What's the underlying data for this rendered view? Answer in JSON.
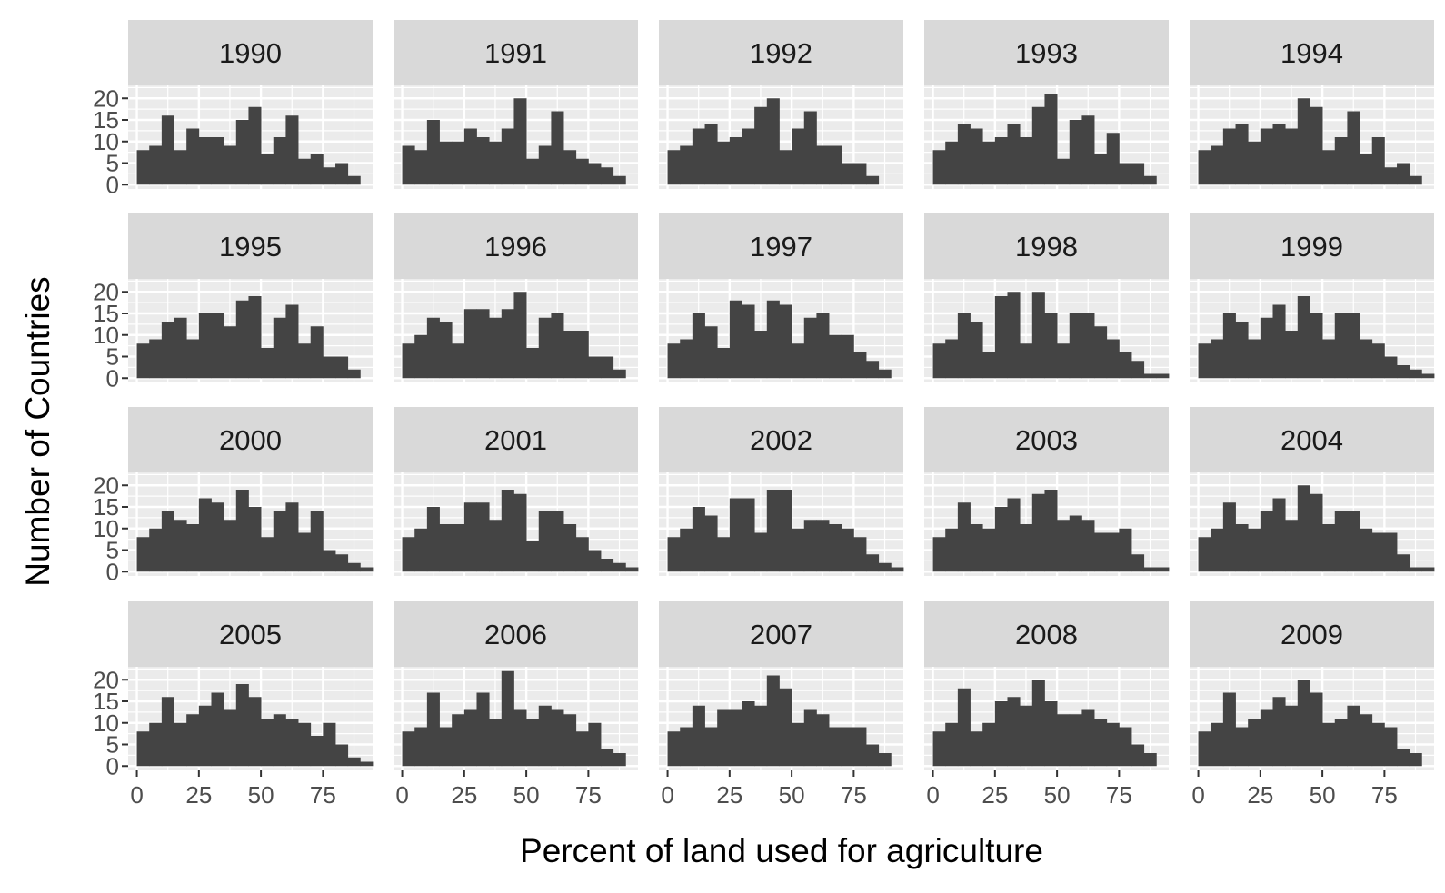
{
  "chart_data": {
    "type": "bar",
    "subtype": "faceted histogram",
    "xlabel": "Percent of land used for agriculture",
    "ylabel": "Number of Countries",
    "bin_width": 5,
    "bin_starts": [
      0,
      5,
      10,
      15,
      20,
      25,
      30,
      35,
      40,
      45,
      50,
      55,
      60,
      65,
      70,
      75,
      80,
      85,
      90
    ],
    "xlim": [
      -3.5,
      95
    ],
    "ylim": [
      -1,
      23
    ],
    "x_ticks": [
      0,
      25,
      50,
      75
    ],
    "x_tick_labels": [
      "0",
      "25",
      "50",
      "75"
    ],
    "y_ticks": [
      0,
      5,
      10,
      15,
      20
    ],
    "y_tick_labels": [
      "0",
      "5",
      "10",
      "15",
      "20"
    ],
    "grid": true,
    "colors": {
      "bar": "#444444",
      "panel": "#ebebeb",
      "grid": "#ffffff",
      "strip": "#d9d9d9"
    },
    "facets": [
      {
        "label": "1990",
        "values": [
          8,
          9,
          16,
          8,
          13,
          11,
          11,
          9,
          15,
          18,
          7,
          11,
          16,
          6,
          7,
          4,
          5,
          2,
          0
        ]
      },
      {
        "label": "1991",
        "values": [
          9,
          8,
          15,
          10,
          10,
          13,
          11,
          10,
          13,
          20,
          6,
          9,
          17,
          8,
          6,
          5,
          4,
          2,
          0
        ]
      },
      {
        "label": "1992",
        "values": [
          8,
          9,
          13,
          14,
          10,
          11,
          13,
          18,
          20,
          8,
          13,
          17,
          9,
          9,
          5,
          5,
          2,
          0,
          0
        ]
      },
      {
        "label": "1993",
        "values": [
          8,
          10,
          14,
          13,
          10,
          11,
          14,
          11,
          18,
          21,
          6,
          15,
          16,
          7,
          12,
          5,
          5,
          2,
          0
        ]
      },
      {
        "label": "1994",
        "values": [
          8,
          9,
          13,
          14,
          10,
          13,
          14,
          13,
          20,
          18,
          8,
          11,
          17,
          7,
          11,
          4,
          5,
          2,
          0
        ]
      },
      {
        "label": "1995",
        "values": [
          8,
          9,
          13,
          14,
          9,
          15,
          15,
          12,
          18,
          19,
          7,
          14,
          17,
          8,
          12,
          5,
          5,
          2,
          0
        ]
      },
      {
        "label": "1996",
        "values": [
          8,
          10,
          14,
          13,
          8,
          16,
          16,
          14,
          16,
          20,
          7,
          14,
          15,
          11,
          11,
          5,
          5,
          2,
          0
        ]
      },
      {
        "label": "1997",
        "values": [
          8,
          9,
          15,
          12,
          7,
          18,
          17,
          11,
          18,
          17,
          8,
          14,
          15,
          10,
          10,
          6,
          4,
          2,
          0
        ]
      },
      {
        "label": "1998",
        "values": [
          8,
          9,
          15,
          13,
          6,
          19,
          20,
          8,
          20,
          15,
          8,
          15,
          15,
          12,
          9,
          6,
          4,
          1,
          1
        ]
      },
      {
        "label": "1999",
        "values": [
          8,
          9,
          15,
          13,
          9,
          14,
          17,
          11,
          19,
          15,
          9,
          15,
          15,
          9,
          8,
          5,
          3,
          2,
          1
        ]
      },
      {
        "label": "2000",
        "values": [
          8,
          10,
          14,
          12,
          11,
          17,
          16,
          12,
          19,
          15,
          8,
          14,
          16,
          9,
          14,
          5,
          4,
          2,
          1
        ]
      },
      {
        "label": "2001",
        "values": [
          8,
          10,
          15,
          11,
          11,
          16,
          16,
          12,
          19,
          18,
          7,
          14,
          14,
          11,
          8,
          5,
          3,
          2,
          1
        ]
      },
      {
        "label": "2002",
        "values": [
          8,
          10,
          15,
          13,
          8,
          17,
          17,
          9,
          19,
          19,
          10,
          12,
          12,
          11,
          10,
          8,
          4,
          2,
          1
        ]
      },
      {
        "label": "2003",
        "values": [
          8,
          10,
          16,
          11,
          10,
          15,
          17,
          11,
          18,
          19,
          12,
          13,
          12,
          9,
          9,
          10,
          4,
          1,
          1
        ]
      },
      {
        "label": "2004",
        "values": [
          8,
          10,
          16,
          11,
          10,
          14,
          17,
          12,
          20,
          18,
          11,
          14,
          14,
          10,
          9,
          9,
          4,
          1,
          1
        ]
      },
      {
        "label": "2005",
        "values": [
          8,
          10,
          16,
          10,
          12,
          14,
          17,
          13,
          19,
          16,
          11,
          12,
          11,
          10,
          7,
          10,
          5,
          2,
          1
        ]
      },
      {
        "label": "2006",
        "values": [
          8,
          9,
          17,
          9,
          12,
          13,
          17,
          11,
          22,
          13,
          11,
          14,
          13,
          12,
          8,
          10,
          4,
          3,
          0
        ]
      },
      {
        "label": "2007",
        "values": [
          8,
          9,
          14,
          9,
          13,
          13,
          15,
          14,
          21,
          18,
          10,
          13,
          12,
          9,
          9,
          9,
          5,
          3,
          0
        ]
      },
      {
        "label": "2008",
        "values": [
          8,
          10,
          18,
          8,
          10,
          15,
          16,
          14,
          20,
          15,
          12,
          12,
          13,
          11,
          10,
          9,
          5,
          3,
          0
        ]
      },
      {
        "label": "2009",
        "values": [
          8,
          10,
          17,
          9,
          11,
          13,
          16,
          14,
          20,
          17,
          10,
          11,
          14,
          12,
          10,
          9,
          4,
          3,
          0
        ]
      }
    ]
  }
}
